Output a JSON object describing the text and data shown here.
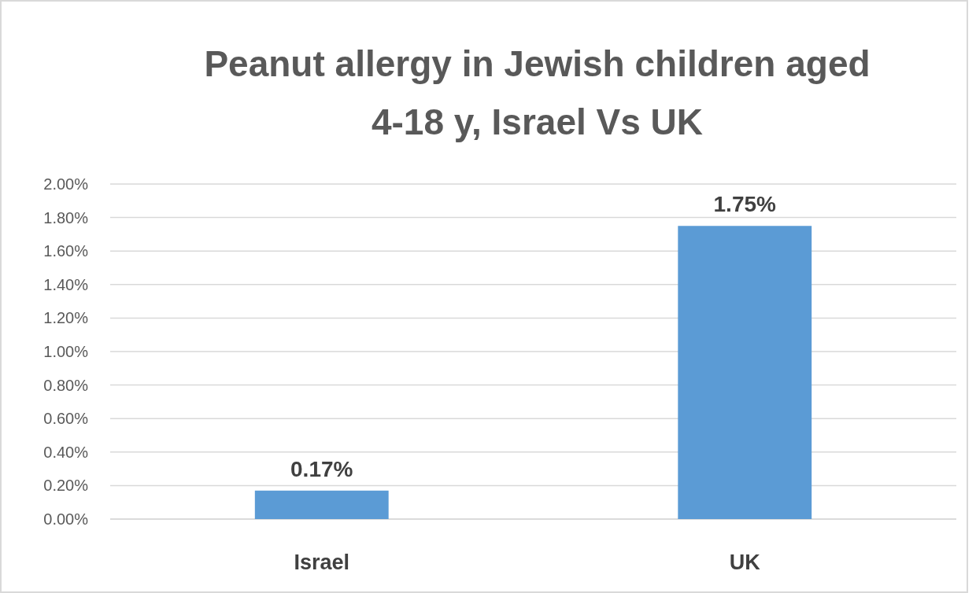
{
  "chart_data": {
    "type": "bar",
    "title": "Peanut allergy in Jewish children aged 4-18 y, Israel Vs UK",
    "categories": [
      "Israel",
      "UK"
    ],
    "values": [
      0.17,
      1.75
    ],
    "color": "#5b9bd5",
    "value_labels": [
      "0.17%",
      "1.75%"
    ],
    "ylim": [
      0,
      2
    ],
    "yticks": [
      {
        "value": 0,
        "label": "0.00%"
      },
      {
        "value": 0.2,
        "label": "0.20%"
      },
      {
        "value": 0.4,
        "label": "0.40%"
      },
      {
        "value": 0.6,
        "label": "0.60%"
      },
      {
        "value": 0.8,
        "label": "0.80%"
      },
      {
        "value": 1,
        "label": "1.00%"
      },
      {
        "value": 1.2,
        "label": "1.20%"
      },
      {
        "value": 1.4,
        "label": "1.40%"
      },
      {
        "value": 1.6,
        "label": "1.60%"
      },
      {
        "value": 1.8,
        "label": "1.80%"
      },
      {
        "value": 2,
        "label": "2.00%"
      }
    ],
    "grid": "y"
  }
}
